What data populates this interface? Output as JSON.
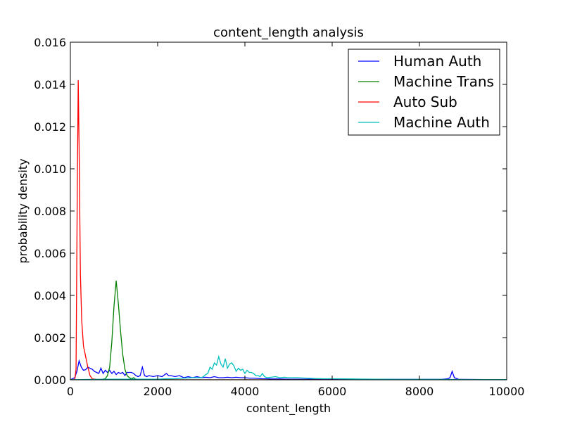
{
  "chart_data": {
    "type": "line",
    "title": "content_length analysis",
    "xlabel": "content_length",
    "ylabel": "probability density",
    "xlim": [
      0,
      10000
    ],
    "ylim": [
      0,
      0.016
    ],
    "x_ticks": [
      0,
      2000,
      4000,
      6000,
      8000,
      10000
    ],
    "x_tick_labels": [
      "0",
      "2000",
      "4000",
      "6000",
      "8000",
      "10000"
    ],
    "y_ticks": [
      0,
      0.002,
      0.004,
      0.006,
      0.008,
      0.01,
      0.012,
      0.014,
      0.016
    ],
    "y_tick_labels": [
      "0.000",
      "0.002",
      "0.004",
      "0.006",
      "0.008",
      "0.010",
      "0.012",
      "0.014",
      "0.016"
    ],
    "grid": false,
    "legend_position": "top-right",
    "series": [
      {
        "name": "Human Auth",
        "color": "#0000ff",
        "x": [
          0,
          100,
          150,
          200,
          250,
          300,
          350,
          400,
          450,
          500,
          550,
          600,
          650,
          700,
          750,
          800,
          850,
          900,
          950,
          1000,
          1050,
          1100,
          1150,
          1200,
          1250,
          1300,
          1350,
          1400,
          1450,
          1500,
          1550,
          1600,
          1650,
          1700,
          1750,
          1800,
          1900,
          2000,
          2100,
          2200,
          2250,
          2300,
          2400,
          2500,
          2600,
          2700,
          2800,
          2900,
          3000,
          3100,
          3200,
          3300,
          3400,
          3500,
          3600,
          3700,
          3800,
          3900,
          4000,
          4100,
          4200,
          4400,
          4600,
          4800,
          5000,
          5500,
          6000,
          6500,
          7000,
          7500,
          8000,
          8500,
          8650,
          8700,
          8750,
          8800,
          8900,
          9000,
          9500,
          10000
        ],
        "y": [
          0,
          0.0001,
          0.0004,
          0.0009,
          0.0006,
          0.00045,
          0.00048,
          0.0006,
          0.00055,
          0.0005,
          0.0004,
          0.00035,
          0.0003,
          0.00055,
          0.0003,
          0.00045,
          0.00035,
          0.00045,
          0.0003,
          0.0004,
          0.00025,
          0.00035,
          0.0003,
          0.00035,
          0.0002,
          0.00035,
          0.00035,
          0.00035,
          0.0003,
          0.0002,
          0.00015,
          0.0002,
          0.0006,
          0.0002,
          0.00015,
          0.0002,
          0.00015,
          0.0002,
          0.00015,
          0.0003,
          0.0002,
          0.0002,
          0.00015,
          0.0002,
          0.0001,
          0.00015,
          0.0001,
          0.00015,
          0.0001,
          0.00012,
          0.0001,
          0.00015,
          0.0001,
          0.0001,
          0.00012,
          0.0001,
          0.00012,
          0.0001,
          0.0001,
          8e-05,
          8e-05,
          5e-05,
          4e-05,
          4e-05,
          3e-05,
          3e-05,
          2e-05,
          2e-05,
          2e-05,
          2e-05,
          2e-05,
          2e-05,
          5e-05,
          0.0001,
          0.0004,
          0.0001,
          2e-05,
          2e-05,
          1e-05,
          1e-05
        ]
      },
      {
        "name": "Machine Trans",
        "color": "#008000",
        "x": [
          0,
          500,
          700,
          800,
          850,
          900,
          950,
          1000,
          1050,
          1100,
          1150,
          1200,
          1250,
          1300,
          1350,
          1400,
          1450,
          1500,
          1600,
          1800,
          2000,
          2500,
          3000,
          4000,
          5000,
          6000,
          8000,
          10000
        ],
        "y": [
          0,
          0,
          1e-05,
          5e-05,
          0.0002,
          0.0006,
          0.0018,
          0.0035,
          0.0047,
          0.0036,
          0.0023,
          0.0012,
          0.0005,
          0.0002,
          0.0001,
          5e-05,
          0.0001,
          3e-05,
          2e-05,
          1e-05,
          1e-05,
          0,
          0,
          0,
          0,
          0,
          0,
          0
        ]
      },
      {
        "name": "Auto Sub",
        "color": "#ff0000",
        "x": [
          0,
          100,
          130,
          160,
          180,
          200,
          230,
          260,
          300,
          350,
          400,
          450,
          500,
          600,
          800,
          1000,
          1500,
          2000,
          3000,
          4000,
          5000,
          6000,
          8000,
          10000
        ],
        "y": [
          0,
          0,
          0.0005,
          0.0095,
          0.0142,
          0.011,
          0.005,
          0.0028,
          0.0016,
          0.0011,
          0.0006,
          0.0002,
          5e-05,
          2e-05,
          1e-05,
          0,
          0,
          0,
          0,
          0,
          0,
          0,
          0,
          0
        ]
      },
      {
        "name": "Machine Auth",
        "color": "#00bfbf",
        "x": [
          0,
          500,
          1000,
          1500,
          2000,
          2200,
          2400,
          2600,
          2800,
          3000,
          3050,
          3100,
          3150,
          3200,
          3250,
          3300,
          3350,
          3400,
          3450,
          3500,
          3550,
          3600,
          3650,
          3700,
          3750,
          3800,
          3850,
          3900,
          3950,
          4000,
          4050,
          4100,
          4150,
          4200,
          4250,
          4300,
          4350,
          4400,
          4450,
          4500,
          4600,
          4700,
          4800,
          4900,
          5000,
          5200,
          5400,
          5600,
          5800,
          6000,
          6500,
          7000,
          7500,
          8000,
          8500,
          9000,
          9500,
          10000
        ],
        "y": [
          0,
          2e-05,
          3e-05,
          3e-05,
          3e-05,
          5e-05,
          5e-05,
          8e-05,
          0.0001,
          0.0001,
          0.00015,
          0.00025,
          0.0003,
          0.0006,
          0.0005,
          0.0008,
          0.0007,
          0.0011,
          0.00075,
          0.0006,
          0.001,
          0.00055,
          0.00075,
          0.0008,
          0.00065,
          0.0004,
          0.00055,
          0.00045,
          0.0005,
          0.0003,
          0.00045,
          0.00035,
          0.00035,
          0.0003,
          0.0002,
          0.0002,
          0.00015,
          0.0003,
          0.00015,
          0.0001,
          0.00012,
          0.00015,
          0.0001,
          0.00012,
          0.0001,
          0.0001,
          8e-05,
          6e-05,
          5e-05,
          5e-05,
          4e-05,
          3e-05,
          2e-05,
          2e-05,
          2e-05,
          1e-05,
          1e-05,
          1e-05
        ]
      }
    ]
  }
}
